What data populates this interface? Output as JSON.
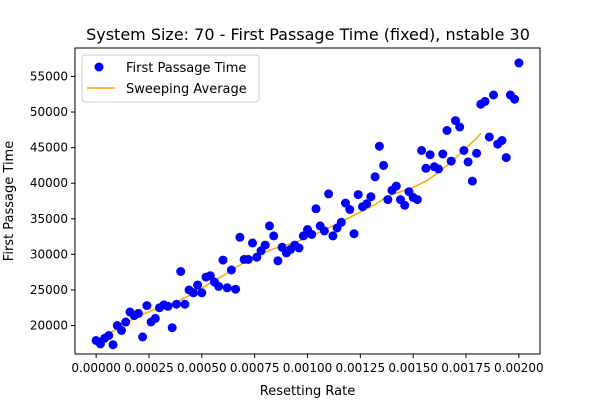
{
  "chart_data": {
    "type": "scatter",
    "title": "System Size: 70 - First Passage Time (fixed), nstable 30",
    "xlabel": "Resetting Rate",
    "ylabel": "First Passage Time",
    "xlim": [
      -0.0001,
      0.0021
    ],
    "ylim": [
      16000,
      59000
    ],
    "x_ticks": [
      0.0,
      0.00025,
      0.0005,
      0.00075,
      0.001,
      0.00125,
      0.0015,
      0.00175,
      0.002
    ],
    "x_tick_labels": [
      "0.00000",
      "0.00025",
      "0.00050",
      "0.00075",
      "0.00100",
      "0.00125",
      "0.00150",
      "0.00175",
      "0.00200"
    ],
    "y_ticks": [
      20000,
      25000,
      30000,
      35000,
      40000,
      45000,
      50000,
      55000
    ],
    "y_tick_labels": [
      "20000",
      "25000",
      "30000",
      "35000",
      "40000",
      "45000",
      "50000",
      "55000"
    ],
    "grid": false,
    "legend_position": "top-left",
    "colors": {
      "scatter": "#0000ff",
      "line": "#ffa500",
      "axes": "#000000",
      "background": "#ffffff"
    },
    "series": [
      {
        "name": "First Passage Time",
        "type": "scatter",
        "x": [
          0.0,
          2e-05,
          4e-05,
          6e-05,
          8e-05,
          0.0001,
          0.00012,
          0.00014,
          0.00016,
          0.00018,
          0.0002,
          0.00022,
          0.00024,
          0.00026,
          0.00028,
          0.0003,
          0.00032,
          0.00034,
          0.00036,
          0.00038,
          0.0004,
          0.00042,
          0.00044,
          0.00046,
          0.00048,
          0.0005,
          0.00052,
          0.00054,
          0.00056,
          0.00058,
          0.0006,
          0.00062,
          0.00064,
          0.00066,
          0.00068,
          0.0007,
          0.00072,
          0.00074,
          0.00076,
          0.00078,
          0.0008,
          0.00082,
          0.00084,
          0.00086,
          0.00088,
          0.0009,
          0.00092,
          0.00094,
          0.00096,
          0.00098,
          0.001,
          0.00102,
          0.00104,
          0.00106,
          0.00108,
          0.0011,
          0.00112,
          0.00114,
          0.00116,
          0.00118,
          0.0012,
          0.00122,
          0.00124,
          0.00126,
          0.00128,
          0.0013,
          0.00132,
          0.00134,
          0.00136,
          0.00138,
          0.0014,
          0.00142,
          0.00144,
          0.00146,
          0.00148,
          0.0015,
          0.00152,
          0.00154,
          0.00156,
          0.00158,
          0.0016,
          0.00162,
          0.00164,
          0.00166,
          0.00168,
          0.0017,
          0.00172,
          0.00174,
          0.00176,
          0.00178,
          0.0018,
          0.00182,
          0.00184,
          0.00186,
          0.00188,
          0.0019,
          0.00192,
          0.00194,
          0.00196,
          0.00198,
          0.002
        ],
        "y": [
          17900,
          17400,
          18200,
          18600,
          17300,
          20000,
          19300,
          20500,
          21900,
          21400,
          21700,
          18400,
          22800,
          20500,
          21000,
          22500,
          22900,
          22700,
          19700,
          23000,
          27600,
          23000,
          25000,
          24600,
          25700,
          24600,
          26800,
          27000,
          26100,
          25500,
          29200,
          25300,
          27800,
          25100,
          32400,
          29300,
          29300,
          31600,
          29600,
          30500,
          31300,
          34000,
          32600,
          29100,
          31000,
          30200,
          30700,
          31300,
          30900,
          32600,
          33500,
          32800,
          36400,
          34000,
          33300,
          38500,
          32600,
          33700,
          34500,
          37200,
          36300,
          32900,
          38400,
          36700,
          37100,
          38100,
          40900,
          45200,
          42500,
          37700,
          39000,
          39600,
          37700,
          36900,
          38800,
          38000,
          37700,
          44600,
          42100,
          44000,
          42300,
          42000,
          44100,
          47400,
          43100,
          48800,
          47900,
          44600,
          43000,
          40300,
          44200,
          51100,
          51500,
          46500,
          52400,
          45500,
          46000,
          43600,
          52400,
          51800,
          56900
        ]
      },
      {
        "name": "Sweeping Average",
        "type": "line",
        "x": [
          0.0,
          4e-05,
          8e-05,
          0.00012,
          0.00016,
          0.0002,
          0.00024,
          0.00028,
          0.00032,
          0.00036,
          0.0004,
          0.00044,
          0.00048,
          0.00052,
          0.00056,
          0.0006,
          0.00064,
          0.00068,
          0.00072,
          0.00076,
          0.0008,
          0.00084,
          0.00088,
          0.00092,
          0.00096,
          0.001,
          0.00104,
          0.00108,
          0.00112,
          0.00116,
          0.0012,
          0.00124,
          0.00128,
          0.00132,
          0.00136,
          0.0014,
          0.00144,
          0.00148,
          0.00152,
          0.00156,
          0.0016,
          0.00164,
          0.00168,
          0.00172,
          0.00176,
          0.0018,
          0.00182
        ],
        "y": [
          18000,
          18500,
          19200,
          19900,
          20700,
          21300,
          21800,
          22300,
          22700,
          23100,
          23600,
          24200,
          24900,
          25600,
          26300,
          27000,
          27800,
          28500,
          29200,
          29800,
          30300,
          30800,
          31100,
          31500,
          31900,
          32400,
          32900,
          33400,
          34000,
          34600,
          35200,
          35800,
          36400,
          37000,
          37800,
          38400,
          38800,
          39200,
          39700,
          40300,
          41100,
          42000,
          43000,
          44100,
          45200,
          46300,
          47000
        ]
      }
    ]
  }
}
